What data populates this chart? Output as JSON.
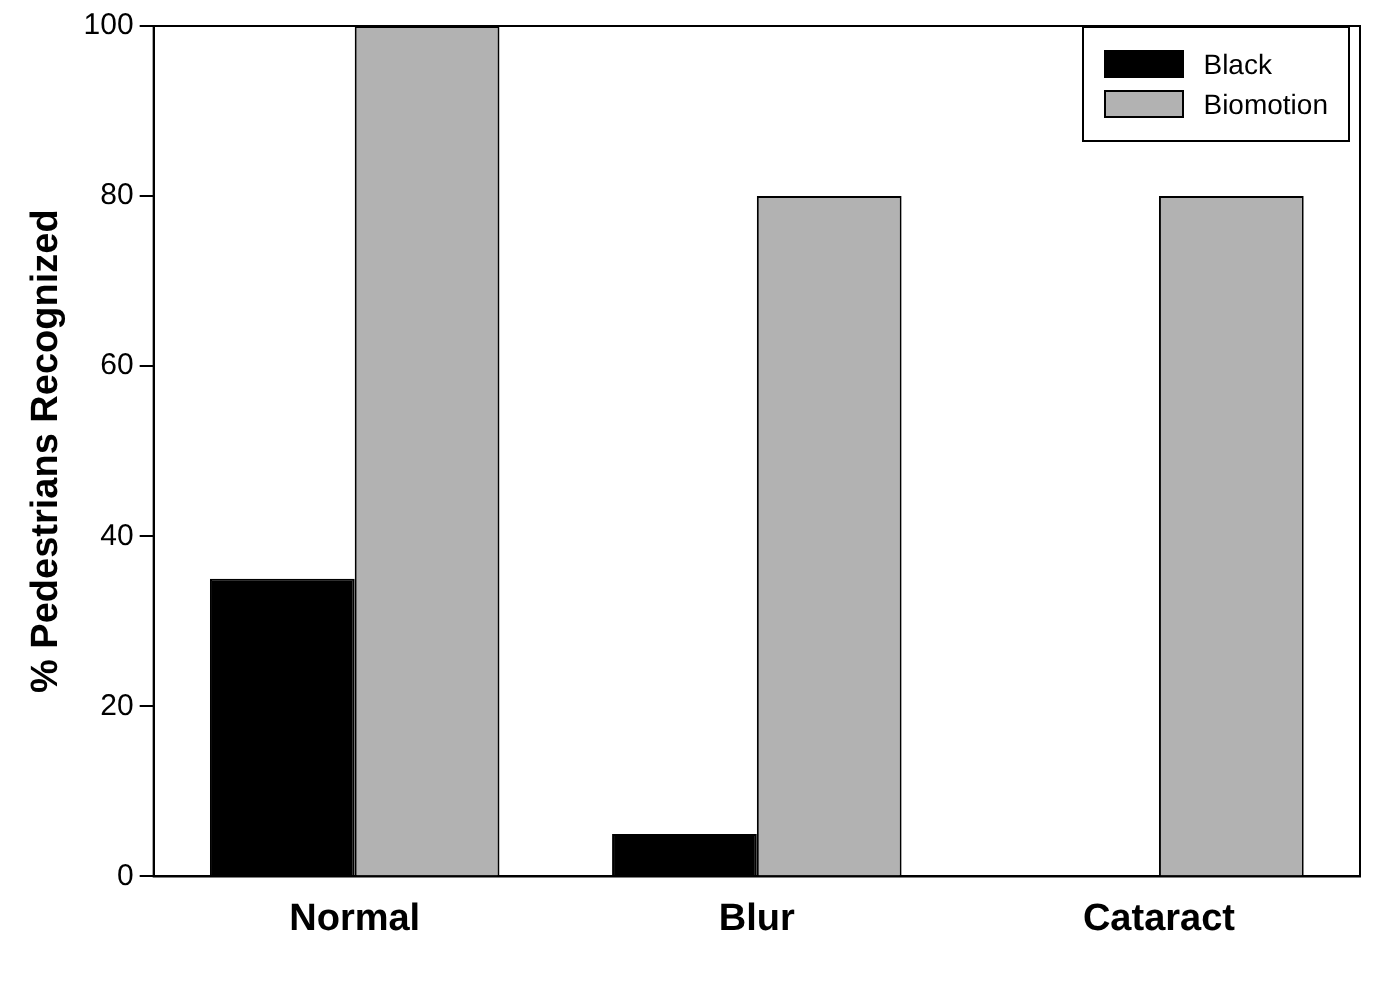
{
  "chart_data": {
    "type": "bar",
    "ylabel": "% Pedestrians Recognized",
    "categories": [
      "Normal",
      "Blur",
      "Cataract"
    ],
    "series": [
      {
        "name": "Black",
        "color": "#000000",
        "values": [
          35,
          5,
          0
        ]
      },
      {
        "name": "Biomotion",
        "color": "#b2b2b2",
        "values": [
          100,
          80,
          80
        ]
      }
    ],
    "ylim": [
      0,
      100
    ],
    "yticks": [
      0,
      20,
      40,
      60,
      80,
      100
    ],
    "grid": false,
    "legend": "top right"
  }
}
